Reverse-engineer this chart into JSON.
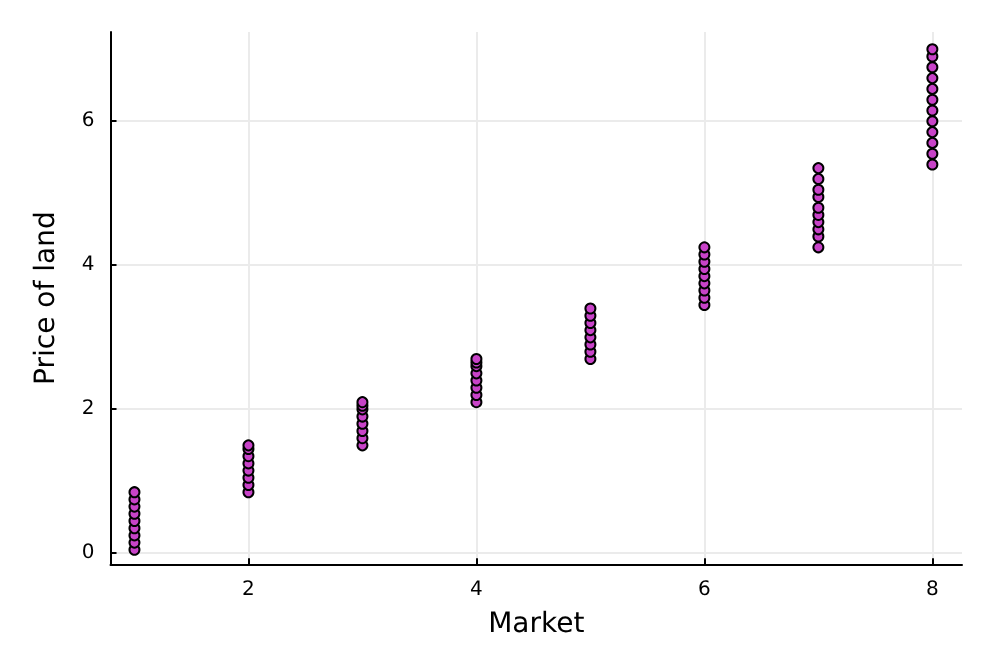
{
  "chart_data": {
    "type": "scatter",
    "xlabel": "Market",
    "ylabel": "Price of land",
    "x": [
      1,
      1,
      1,
      1,
      1,
      1,
      1,
      1,
      1,
      2,
      2,
      2,
      2,
      2,
      2,
      2,
      2,
      3,
      3,
      3,
      3,
      3,
      3,
      3,
      3,
      4,
      4,
      4,
      4,
      4,
      4,
      4,
      4,
      5,
      5,
      5,
      5,
      5,
      5,
      5,
      5,
      6,
      6,
      6,
      6,
      6,
      6,
      6,
      6,
      6,
      7,
      7,
      7,
      7,
      7,
      7,
      7,
      7,
      7,
      7,
      8,
      8,
      8,
      8,
      8,
      8,
      8,
      8,
      8,
      8,
      8,
      8
    ],
    "series": [
      {
        "color": "#c843c8",
        "values": [
          0.05,
          0.15,
          0.25,
          0.35,
          0.45,
          0.55,
          0.65,
          0.75,
          0.85,
          0.85,
          0.95,
          1.05,
          1.15,
          1.25,
          1.35,
          1.45,
          1.5,
          1.5,
          1.6,
          1.7,
          1.8,
          1.9,
          2.0,
          2.05,
          2.1,
          2.1,
          2.2,
          2.3,
          2.4,
          2.5,
          2.6,
          2.65,
          2.7,
          2.7,
          2.8,
          2.9,
          3.0,
          3.1,
          3.2,
          3.3,
          3.4,
          3.45,
          3.55,
          3.65,
          3.75,
          3.85,
          3.95,
          4.05,
          4.15,
          4.25,
          4.25,
          4.4,
          4.5,
          4.6,
          4.7,
          4.8,
          4.95,
          5.05,
          5.2,
          5.35,
          5.4,
          5.55,
          5.7,
          5.85,
          6.0,
          6.15,
          6.3,
          6.45,
          6.6,
          6.75,
          6.9,
          7.0
        ]
      }
    ],
    "xlim": [
      0.79,
      8.26
    ],
    "xticks": [
      2,
      4,
      6,
      8
    ],
    "ylim": [
      -0.15,
      7.24
    ],
    "yticks": [
      0,
      2,
      4,
      6
    ],
    "grid": true,
    "marker": "circle"
  }
}
